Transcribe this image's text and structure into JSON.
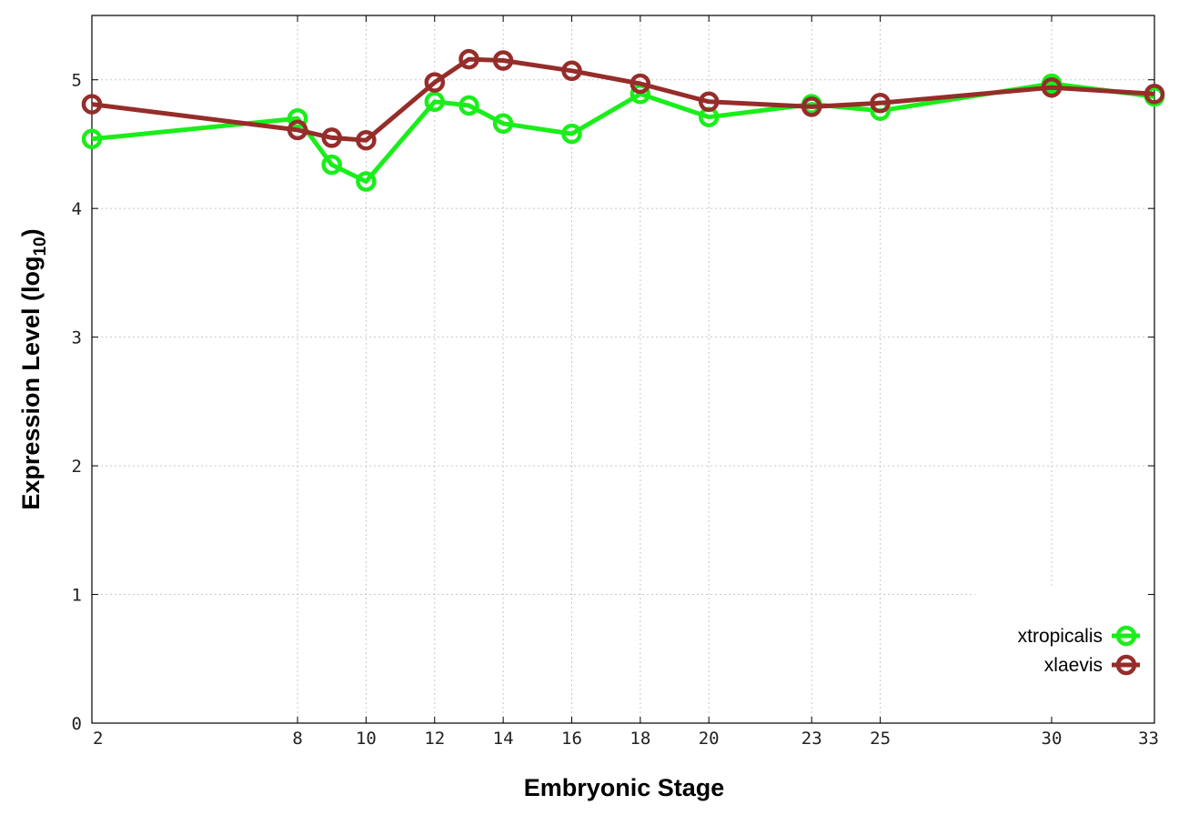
{
  "chart_data": {
    "type": "line",
    "xlabel": "Embryonic Stage",
    "ylabel": "Expression Level",
    "ylabel_log": "log",
    "ylabel_sub": "10",
    "ylim": [
      0,
      5.5
    ],
    "xlim": [
      2,
      33
    ],
    "grid": true,
    "legend_position": "bottom-right",
    "x": [
      2,
      8,
      9,
      10,
      12,
      13,
      14,
      16,
      18,
      20,
      23,
      25,
      30,
      33
    ],
    "xticks": [
      2,
      8,
      10,
      12,
      14,
      16,
      18,
      20,
      23,
      25,
      30,
      33
    ],
    "yticks": [
      0,
      1,
      2,
      3,
      4,
      5
    ],
    "series": [
      {
        "name": "xtropicalis",
        "color": "#1aee1a",
        "values": [
          4.54,
          4.7,
          4.34,
          4.21,
          4.83,
          4.8,
          4.66,
          4.58,
          4.89,
          4.71,
          4.81,
          4.76,
          4.97,
          4.87
        ]
      },
      {
        "name": "xlaevis",
        "color": "#952d2a",
        "values": [
          4.81,
          4.61,
          4.55,
          4.53,
          4.98,
          5.16,
          5.15,
          5.07,
          4.97,
          4.83,
          4.79,
          4.82,
          4.94,
          4.89
        ]
      }
    ]
  }
}
